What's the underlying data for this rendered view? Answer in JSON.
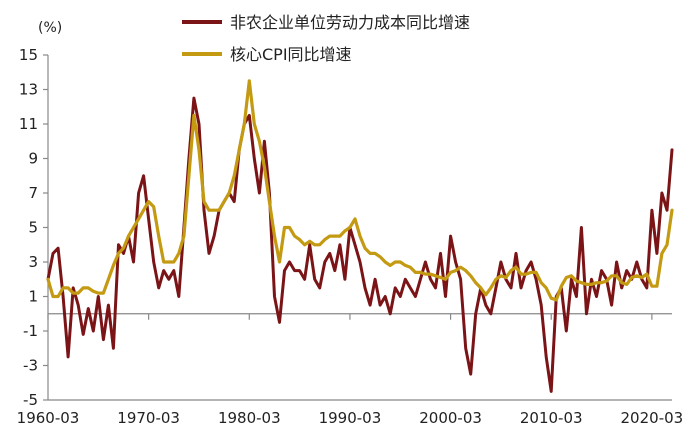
{
  "chart_data": {
    "type": "line",
    "title": "",
    "xlabel": "",
    "ylabel": "",
    "unit_label": "(%)",
    "x_range": [
      1960.0,
      2022.0
    ],
    "ylim": [
      -5,
      15
    ],
    "y_ticks": [
      15,
      13,
      11,
      9,
      7,
      5,
      3,
      1,
      -1,
      -3,
      -5
    ],
    "y_tick_labels": [
      "15",
      "13",
      "11",
      "9",
      "7",
      "5",
      "3",
      "1",
      "-1",
      "-3",
      "-5"
    ],
    "x_ticks": [
      1960,
      1970,
      1980,
      1990,
      2000,
      2010,
      2020
    ],
    "x_tick_labels": [
      "1960-03",
      "1970-03",
      "1980-03",
      "1990-03",
      "2000-03",
      "2010-03",
      "2020-03"
    ],
    "baseline": 0,
    "grid": false,
    "legend": "top-center",
    "series": [
      {
        "name": "非农企业单位劳动力成本同比增速",
        "color": "#7B1416",
        "x": [
          1960.0,
          1960.5,
          1961.0,
          1961.5,
          1962.0,
          1962.5,
          1963.0,
          1963.5,
          1964.0,
          1964.5,
          1965.0,
          1965.5,
          1966.0,
          1966.5,
          1967.0,
          1967.5,
          1968.0,
          1968.5,
          1969.0,
          1969.5,
          1970.0,
          1970.5,
          1971.0,
          1971.5,
          1972.0,
          1972.5,
          1973.0,
          1973.5,
          1974.0,
          1974.5,
          1975.0,
          1975.5,
          1976.0,
          1976.5,
          1977.0,
          1977.5,
          1978.0,
          1978.5,
          1979.0,
          1979.5,
          1980.0,
          1980.5,
          1981.0,
          1981.5,
          1982.0,
          1982.5,
          1983.0,
          1983.5,
          1984.0,
          1984.5,
          1985.0,
          1985.5,
          1986.0,
          1986.5,
          1987.0,
          1987.5,
          1988.0,
          1988.5,
          1989.0,
          1989.5,
          1990.0,
          1990.5,
          1991.0,
          1991.5,
          1992.0,
          1992.5,
          1993.0,
          1993.5,
          1994.0,
          1994.5,
          1995.0,
          1995.5,
          1996.0,
          1996.5,
          1997.0,
          1997.5,
          1998.0,
          1998.5,
          1999.0,
          1999.5,
          2000.0,
          2000.5,
          2001.0,
          2001.5,
          2002.0,
          2002.5,
          2003.0,
          2003.5,
          2004.0,
          2004.5,
          2005.0,
          2005.5,
          2006.0,
          2006.5,
          2007.0,
          2007.5,
          2008.0,
          2008.5,
          2009.0,
          2009.5,
          2010.0,
          2010.5,
          2011.0,
          2011.5,
          2012.0,
          2012.5,
          2013.0,
          2013.5,
          2014.0,
          2014.5,
          2015.0,
          2015.5,
          2016.0,
          2016.5,
          2017.0,
          2017.5,
          2018.0,
          2018.5,
          2019.0,
          2019.5,
          2020.0,
          2020.5,
          2021.0,
          2021.5,
          2022.0
        ],
        "values": [
          2.0,
          3.5,
          3.8,
          1.0,
          -2.5,
          1.5,
          0.5,
          -1.2,
          0.3,
          -1.0,
          1.0,
          -1.5,
          0.5,
          -2.0,
          4.0,
          3.5,
          4.5,
          3.0,
          7.0,
          8.0,
          5.5,
          3.0,
          1.5,
          2.5,
          2.0,
          2.5,
          1.0,
          5.0,
          9.0,
          12.5,
          11.0,
          6.0,
          3.5,
          4.5,
          6.0,
          6.5,
          7.0,
          6.5,
          9.5,
          11.0,
          11.5,
          9.0,
          7.0,
          10.0,
          7.0,
          1.0,
          -0.5,
          2.5,
          3.0,
          2.5,
          2.5,
          2.0,
          4.0,
          2.0,
          1.5,
          3.0,
          3.5,
          2.5,
          4.0,
          2.0,
          5.0,
          4.0,
          3.0,
          1.5,
          0.5,
          2.0,
          0.5,
          1.0,
          0.0,
          1.5,
          1.0,
          2.0,
          1.5,
          1.0,
          2.0,
          3.0,
          2.0,
          1.5,
          3.5,
          1.0,
          4.5,
          3.0,
          2.0,
          -2.0,
          -3.5,
          0.0,
          1.5,
          0.5,
          0.0,
          1.5,
          3.0,
          2.0,
          1.5,
          3.5,
          1.5,
          2.5,
          3.0,
          2.0,
          0.5,
          -2.5,
          -4.5,
          1.0,
          1.5,
          -1.0,
          2.0,
          1.0,
          5.0,
          0.0,
          2.0,
          1.0,
          2.5,
          2.0,
          0.5,
          3.0,
          1.5,
          2.5,
          2.0,
          3.0,
          2.0,
          1.5,
          6.0,
          3.5,
          7.0,
          6.0,
          9.5
        ]
      },
      {
        "name": "核心CPI同比增速",
        "color": "#C49A12",
        "x": [
          1960.0,
          1960.5,
          1961.0,
          1961.5,
          1962.0,
          1962.5,
          1963.0,
          1963.5,
          1964.0,
          1964.5,
          1965.0,
          1965.5,
          1966.0,
          1966.5,
          1967.0,
          1967.5,
          1968.0,
          1968.5,
          1969.0,
          1969.5,
          1970.0,
          1970.5,
          1971.0,
          1971.5,
          1972.0,
          1972.5,
          1973.0,
          1973.5,
          1974.0,
          1974.5,
          1975.0,
          1975.5,
          1976.0,
          1976.5,
          1977.0,
          1977.5,
          1978.0,
          1978.5,
          1979.0,
          1979.5,
          1980.0,
          1980.5,
          1981.0,
          1981.5,
          1982.0,
          1982.5,
          1983.0,
          1983.5,
          1984.0,
          1984.5,
          1985.0,
          1985.5,
          1986.0,
          1986.5,
          1987.0,
          1987.5,
          1988.0,
          1988.5,
          1989.0,
          1989.5,
          1990.0,
          1990.5,
          1991.0,
          1991.5,
          1992.0,
          1992.5,
          1993.0,
          1993.5,
          1994.0,
          1994.5,
          1995.0,
          1995.5,
          1996.0,
          1996.5,
          1997.0,
          1997.5,
          1998.0,
          1998.5,
          1999.0,
          1999.5,
          2000.0,
          2000.5,
          2001.0,
          2001.5,
          2002.0,
          2002.5,
          2003.0,
          2003.5,
          2004.0,
          2004.5,
          2005.0,
          2005.5,
          2006.0,
          2006.5,
          2007.0,
          2007.5,
          2008.0,
          2008.5,
          2009.0,
          2009.5,
          2010.0,
          2010.5,
          2011.0,
          2011.5,
          2012.0,
          2012.5,
          2013.0,
          2013.5,
          2014.0,
          2014.5,
          2015.0,
          2015.5,
          2016.0,
          2016.5,
          2017.0,
          2017.5,
          2018.0,
          2018.5,
          2019.0,
          2019.5,
          2020.0,
          2020.5,
          2021.0,
          2021.5,
          2022.0
        ],
        "values": [
          2.0,
          1.0,
          1.0,
          1.5,
          1.5,
          1.2,
          1.2,
          1.5,
          1.5,
          1.3,
          1.2,
          1.2,
          2.0,
          2.8,
          3.5,
          3.8,
          4.5,
          5.0,
          5.5,
          6.0,
          6.5,
          6.2,
          4.5,
          3.0,
          3.0,
          3.0,
          3.5,
          4.5,
          8.0,
          11.5,
          9.5,
          6.5,
          6.0,
          6.0,
          6.0,
          6.5,
          7.0,
          8.0,
          9.5,
          11.0,
          13.5,
          11.0,
          10.0,
          8.5,
          6.5,
          4.5,
          3.0,
          5.0,
          5.0,
          4.5,
          4.3,
          4.0,
          4.2,
          4.0,
          4.0,
          4.3,
          4.5,
          4.5,
          4.5,
          4.8,
          5.0,
          5.5,
          4.5,
          3.8,
          3.5,
          3.5,
          3.3,
          3.0,
          2.8,
          3.0,
          3.0,
          2.8,
          2.7,
          2.4,
          2.4,
          2.3,
          2.3,
          2.2,
          2.1,
          2.0,
          2.4,
          2.5,
          2.7,
          2.5,
          2.2,
          1.8,
          1.5,
          1.1,
          1.5,
          2.0,
          2.2,
          2.1,
          2.5,
          2.7,
          2.3,
          2.3,
          2.4,
          2.4,
          1.8,
          1.5,
          0.9,
          0.8,
          1.6,
          2.1,
          2.2,
          1.9,
          1.8,
          1.7,
          1.7,
          1.8,
          1.8,
          1.9,
          2.2,
          2.2,
          1.8,
          1.7,
          2.1,
          2.2,
          2.1,
          2.3,
          1.6,
          1.6,
          3.5,
          4.0,
          6.0
        ]
      }
    ]
  }
}
